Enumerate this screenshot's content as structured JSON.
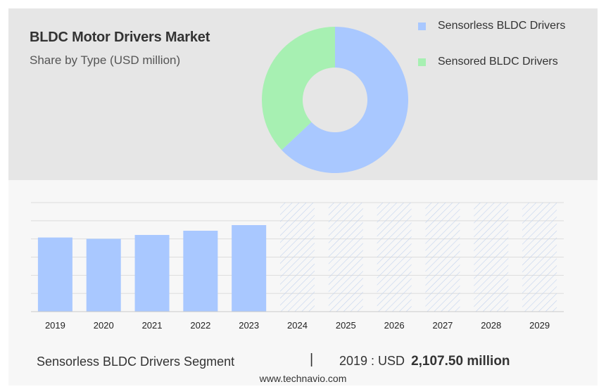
{
  "title": "BLDC Motor Drivers Market",
  "subtitle": "Share by Type (USD million)",
  "legend": [
    {
      "label": "Sensorless BLDC Drivers",
      "color": "#a9c8ff"
    },
    {
      "label": "Sensored BLDC Drivers",
      "color": "#a7f0b2"
    }
  ],
  "footer": {
    "segment": "Sensorless BLDC Drivers Segment",
    "separator": "|",
    "year_label": "2019 : USD",
    "value": "2,107.50 million"
  },
  "credit": "www.technavio.com",
  "colors": {
    "bar": "#a9c8ff",
    "forecast_hatch": "#c3d3ee",
    "grid": "#dcdcdc"
  },
  "chart_data": [
    {
      "type": "pie",
      "style": "donut",
      "slices": [
        {
          "name": "Sensorless BLDC Drivers",
          "share": 0.63,
          "color": "#a9c8ff"
        },
        {
          "name": "Sensored BLDC Drivers",
          "share": 0.37,
          "color": "#a7f0b2"
        }
      ]
    },
    {
      "type": "bar",
      "categories": [
        "2019",
        "2020",
        "2021",
        "2022",
        "2023",
        "2024",
        "2025",
        "2026",
        "2027",
        "2028",
        "2029"
      ],
      "values": [
        2107.5,
        2070,
        2180,
        2300,
        2460,
        null,
        null,
        null,
        null,
        null,
        null
      ],
      "forecast_categories": [
        "2024",
        "2025",
        "2026",
        "2027",
        "2028",
        "2029"
      ],
      "ylim": [
        0,
        3100
      ],
      "grid": true
    }
  ]
}
